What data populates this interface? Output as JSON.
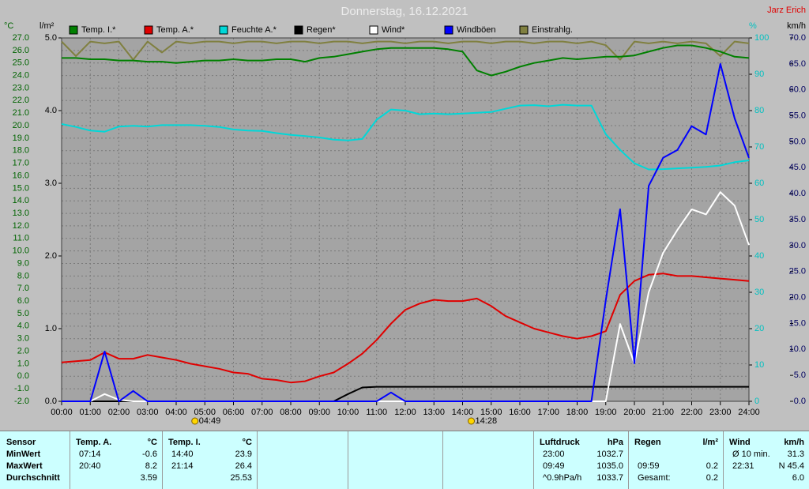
{
  "author": "Jarz Erich",
  "chart_data": {
    "type": "line",
    "title": "Donnerstag, 16.12.2021",
    "y_label": "°C",
    "y2_label": "km/h",
    "y3_label": "l/m²",
    "y4_label": "%",
    "x": [
      0,
      0.5,
      1,
      1.5,
      2,
      2.5,
      3,
      3.5,
      4,
      4.5,
      5,
      5.5,
      6,
      6.5,
      7,
      7.5,
      8,
      8.5,
      9,
      9.5,
      10,
      10.5,
      11,
      11.5,
      12,
      12.5,
      13,
      13.5,
      14,
      14.5,
      15,
      15.5,
      16,
      16.5,
      17,
      17.5,
      18,
      18.5,
      19,
      19.5,
      20,
      20.5,
      21,
      21.5,
      22,
      22.5,
      23,
      23.5,
      24
    ],
    "xlim": [
      0,
      24
    ],
    "xticks": [
      {
        "value": 0,
        "label": "00:00"
      },
      {
        "value": 1,
        "label": "01:00"
      },
      {
        "value": 2,
        "label": "02:00"
      },
      {
        "value": 3,
        "label": "03:00"
      },
      {
        "value": 4,
        "label": "04:00"
      },
      {
        "value": 5,
        "label": "05:00"
      },
      {
        "value": 6,
        "label": "06:00"
      },
      {
        "value": 7,
        "label": "07:00"
      },
      {
        "value": 8,
        "label": "08:00"
      },
      {
        "value": 9,
        "label": "09:00"
      },
      {
        "value": 10,
        "label": "10:00"
      },
      {
        "value": 11,
        "label": "11:00"
      },
      {
        "value": 12,
        "label": "12:00"
      },
      {
        "value": 13,
        "label": "13:00"
      },
      {
        "value": 14,
        "label": "14:00"
      },
      {
        "value": 15,
        "label": "15:00"
      },
      {
        "value": 16,
        "label": "16:00"
      },
      {
        "value": 17,
        "label": "17:00"
      },
      {
        "value": 18,
        "label": "18:00"
      },
      {
        "value": 19,
        "label": "19:00"
      },
      {
        "value": 20,
        "label": "20:00"
      },
      {
        "value": 21,
        "label": "21:00"
      },
      {
        "value": 22,
        "label": "22:00"
      },
      {
        "value": 23,
        "label": "23:00"
      },
      {
        "value": 24,
        "label": "24:00"
      }
    ],
    "ylim": [
      -2,
      27
    ],
    "yticks": [
      {
        "value": -2,
        "label": "-2.0"
      },
      {
        "value": -1,
        "label": "-1.0"
      },
      {
        "value": 0,
        "label": "0.0"
      },
      {
        "value": 1,
        "label": "1.0"
      },
      {
        "value": 2,
        "label": "2.0"
      },
      {
        "value": 3,
        "label": "3.0"
      },
      {
        "value": 4,
        "label": "4.0"
      },
      {
        "value": 5,
        "label": "5.0"
      },
      {
        "value": 6,
        "label": "6.0"
      },
      {
        "value": 7,
        "label": "7.0"
      },
      {
        "value": 8,
        "label": "8.0"
      },
      {
        "value": 9,
        "label": "9.0"
      },
      {
        "value": 10,
        "label": "10.0"
      },
      {
        "value": 11,
        "label": "11.0"
      },
      {
        "value": 12,
        "label": "12.0"
      },
      {
        "value": 13,
        "label": "13.0"
      },
      {
        "value": 14,
        "label": "14.0"
      },
      {
        "value": 15,
        "label": "15.0"
      },
      {
        "value": 16,
        "label": "16.0"
      },
      {
        "value": 17,
        "label": "17.0"
      },
      {
        "value": 18,
        "label": "18.0"
      },
      {
        "value": 19,
        "label": "19.0"
      },
      {
        "value": 20,
        "label": "20.0"
      },
      {
        "value": 21,
        "label": "21.0"
      },
      {
        "value": 22,
        "label": "22.0"
      },
      {
        "value": 23,
        "label": "23.0"
      },
      {
        "value": 24,
        "label": "24.0"
      },
      {
        "value": 25,
        "label": "25.0"
      },
      {
        "value": 26,
        "label": "26.0"
      },
      {
        "value": 27,
        "label": "27.0"
      }
    ],
    "y2lim": [
      0,
      70
    ],
    "y2ticks": [
      {
        "value": 0,
        "label": "0.0"
      },
      {
        "value": 5,
        "label": "5.0"
      },
      {
        "value": 10,
        "label": "10.0"
      },
      {
        "value": 15,
        "label": "15.0"
      },
      {
        "value": 20,
        "label": "20.0"
      },
      {
        "value": 25,
        "label": "25.0"
      },
      {
        "value": 30,
        "label": "30.0"
      },
      {
        "value": 35,
        "label": "35.0"
      },
      {
        "value": 40,
        "label": "40.0"
      },
      {
        "value": 45,
        "label": "45.0"
      },
      {
        "value": 50,
        "label": "50.0"
      },
      {
        "value": 55,
        "label": "55.0"
      },
      {
        "value": 60,
        "label": "60.0"
      },
      {
        "value": 65,
        "label": "65.0"
      },
      {
        "value": 70,
        "label": "70.0"
      }
    ],
    "y3lim": [
      0,
      5
    ],
    "y3ticks": [
      {
        "value": 0,
        "label": "0.0"
      },
      {
        "value": 1,
        "label": "1.0"
      },
      {
        "value": 2,
        "label": "2.0"
      },
      {
        "value": 3,
        "label": "3.0"
      },
      {
        "value": 4,
        "label": "4.0"
      },
      {
        "value": 5,
        "label": "5.0"
      }
    ],
    "y4lim": [
      0,
      100
    ],
    "y4ticks": [
      0,
      10,
      20,
      30,
      40,
      50,
      60,
      70,
      80,
      90,
      100
    ],
    "grid": true,
    "series": [
      {
        "name": "Temp. I.*",
        "color": "#008000",
        "axis": "y",
        "values": [
          25.4,
          25.4,
          25.3,
          25.3,
          25.2,
          25.2,
          25.1,
          25.1,
          25.0,
          25.1,
          25.2,
          25.2,
          25.3,
          25.2,
          25.2,
          25.3,
          25.3,
          25.1,
          25.4,
          25.5,
          25.7,
          25.9,
          26.1,
          26.2,
          26.2,
          26.2,
          26.2,
          26.1,
          25.9,
          24.4,
          24.0,
          24.3,
          24.7,
          25.0,
          25.2,
          25.4,
          25.3,
          25.4,
          25.5,
          25.5,
          25.6,
          25.9,
          26.2,
          26.4,
          26.4,
          26.2,
          25.9,
          25.5,
          25.4
        ]
      },
      {
        "name": "Temp. A.*",
        "color": "#e00000",
        "axis": "y",
        "values": [
          1.1,
          1.2,
          1.3,
          1.9,
          1.4,
          1.4,
          1.7,
          1.5,
          1.3,
          1.0,
          0.8,
          0.6,
          0.3,
          0.2,
          -0.2,
          -0.3,
          -0.5,
          -0.4,
          0.0,
          0.3,
          1.0,
          1.8,
          2.9,
          4.2,
          5.3,
          5.8,
          6.1,
          6.0,
          6.0,
          6.2,
          5.6,
          4.8,
          4.3,
          3.8,
          3.5,
          3.2,
          3.0,
          3.2,
          3.6,
          6.5,
          7.6,
          8.1,
          8.2,
          8.0,
          8.0,
          7.9,
          7.8,
          7.7,
          7.6
        ]
      },
      {
        "name": "Feuchte A.*",
        "color": "#00d8d8",
        "axis": "y4",
        "values": [
          76.3,
          75.5,
          74.5,
          74.2,
          75.6,
          75.8,
          75.6,
          76.0,
          76.0,
          76.0,
          75.8,
          75.5,
          74.8,
          74.5,
          74.4,
          73.8,
          73.3,
          73.0,
          72.6,
          72.0,
          71.8,
          72.2,
          77.5,
          80.3,
          80.0,
          79.0,
          79.2,
          79.0,
          79.2,
          79.4,
          79.6,
          80.5,
          81.4,
          81.5,
          81.2,
          81.6,
          81.4,
          81.4,
          73.5,
          69.2,
          65.5,
          63.8,
          63.9,
          64.1,
          64.3,
          64.5,
          64.9,
          65.8,
          66.3
        ]
      },
      {
        "name": "Regen*",
        "color": "#000000",
        "axis": "y3",
        "values": [
          0,
          0,
          0,
          0,
          0,
          0,
          0,
          0,
          0,
          0,
          0,
          0,
          0,
          0,
          0,
          0,
          0,
          0,
          0,
          0,
          0.1,
          0.19,
          0.2,
          0.2,
          0.2,
          0.2,
          0.2,
          0.2,
          0.2,
          0.2,
          0.2,
          0.2,
          0.2,
          0.2,
          0.2,
          0.2,
          0.2,
          0.2,
          0.2,
          0.2,
          0.2,
          0.2,
          0.2,
          0.2,
          0.2,
          0.2,
          0.2,
          0.2,
          0.2
        ]
      },
      {
        "name": "Wind*",
        "color": "#ffffff",
        "axis": "y2",
        "values": [
          0,
          0,
          0,
          1.4,
          0.3,
          0,
          0,
          0,
          0,
          0,
          0,
          0,
          0,
          0,
          0,
          0,
          0,
          0,
          0,
          0,
          0,
          0,
          0,
          0,
          0,
          0,
          0,
          0,
          0,
          0,
          0,
          0,
          0,
          0,
          0,
          0,
          0,
          0,
          0,
          14.9,
          7.3,
          21.0,
          28.6,
          33.0,
          37.0,
          36.0,
          40.3,
          37.7,
          30.1
        ]
      },
      {
        "name": "Windböen",
        "color": "#0000ff",
        "axis": "y2",
        "values": [
          0,
          0,
          0,
          9.6,
          0,
          2.0,
          0,
          0,
          0,
          0,
          0,
          0,
          0,
          0,
          0,
          0,
          0,
          0,
          0,
          0,
          0,
          0,
          0,
          1.7,
          0,
          0,
          0,
          0,
          0,
          0,
          0,
          0,
          0,
          0,
          0,
          0,
          0,
          0,
          19.5,
          37.0,
          7.3,
          41.5,
          46.9,
          48.4,
          53.0,
          51.4,
          65.0,
          54.5,
          46.9
        ]
      },
      {
        "name": "Einstrahlg.",
        "color": "#808040",
        "axis": "y4",
        "values": [
          99,
          95,
          99,
          98.5,
          99,
          94,
          99,
          96,
          99,
          98.5,
          99,
          99,
          98.5,
          99,
          99,
          98.5,
          99,
          99,
          98.5,
          99,
          99,
          98.5,
          99,
          99,
          98.5,
          99,
          99,
          98.5,
          99,
          99,
          98.5,
          99,
          99,
          98.5,
          99,
          99,
          98.5,
          99,
          98,
          94,
          99,
          98.5,
          99,
          98.5,
          99,
          98.5,
          95,
          99,
          98.5
        ]
      }
    ],
    "annotations": [
      {
        "label": "04:49",
        "x": 4.82
      },
      {
        "label": "14:28",
        "x": 14.47
      }
    ]
  },
  "table": {
    "row_labels": [
      "Sensor",
      "MinWert",
      "MaxWert",
      "Durchschnitt"
    ],
    "groups": [
      {
        "title": "Temp. A.",
        "unit": "°C",
        "min": {
          "time": "07:14",
          "value": "-0.6"
        },
        "max": {
          "time": "20:40",
          "value": "8.2"
        },
        "avg": {
          "value": "3.59"
        }
      },
      {
        "title": "Temp. I.",
        "unit": "°C",
        "min": {
          "time": "14:40",
          "value": "23.9"
        },
        "max": {
          "time": "21:14",
          "value": "26.4"
        },
        "avg": {
          "value": "25.53"
        }
      },
      {
        "title": "Luftdruck",
        "unit": "hPa",
        "min": {
          "time": "23:00",
          "value": "1032.7"
        },
        "max": {
          "time": "09:49",
          "value": "1035.0"
        },
        "avg": {
          "time": "^0.9hPa/h",
          "value": "1033.7"
        }
      },
      {
        "title": "Regen",
        "unit": "l/m²",
        "max": {
          "time": "09:59",
          "value": "0.2"
        },
        "avg": {
          "time": "Gesamt:",
          "value": "0.2"
        }
      },
      {
        "title": "Wind",
        "unit": "km/h",
        "min": {
          "time": "Ø 10 min.",
          "value": "31.3"
        },
        "max": {
          "time": "22:31",
          "value": "N 45.4"
        },
        "avg": {
          "value": "6.0"
        }
      }
    ]
  }
}
